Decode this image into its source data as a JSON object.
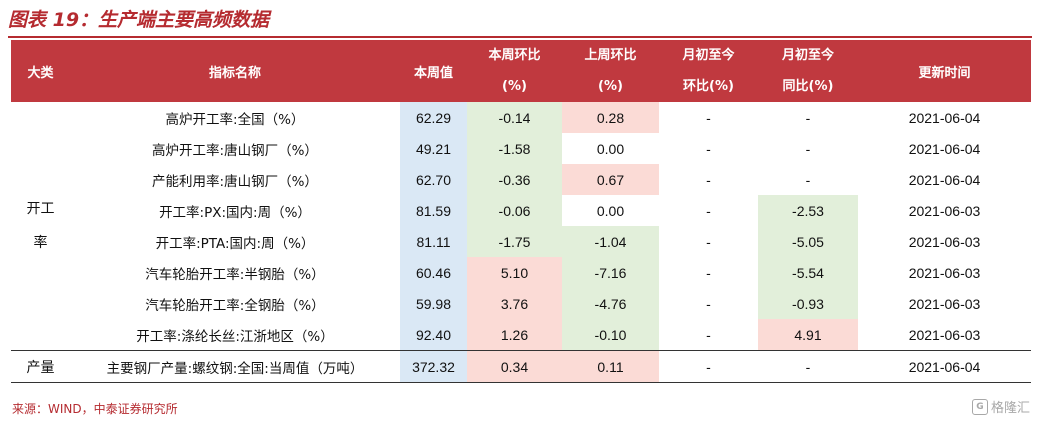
{
  "title": "图表 19：生产端主要高频数据",
  "header": {
    "category": "大类",
    "indicator": "指标名称",
    "this_week": "本周值",
    "wow_line1": "本周环比",
    "wow_line2": "(%)",
    "prev_wow_line1": "上周环比",
    "prev_wow_line2": "(%)",
    "mtd_mom_line1": "月初至今",
    "mtd_mom_line2": "环比(%)",
    "mtd_yoy_line1": "月初至今",
    "mtd_yoy_line2": "同比(%)",
    "updated": "更新时间"
  },
  "group1": {
    "line1": "开工",
    "line2": "率"
  },
  "group2": {
    "label": "产量"
  },
  "rows": [
    {
      "name": "高炉开工率:全国（%）",
      "value": "62.29",
      "wow": "-0.14",
      "prev_wow": "0.28",
      "mom": "-",
      "yoy": "-",
      "date": "2021-06-04"
    },
    {
      "name": "高炉开工率:唐山钢厂（%）",
      "value": "49.21",
      "wow": "-1.58",
      "prev_wow": "0.00",
      "mom": "-",
      "yoy": "-",
      "date": "2021-06-04"
    },
    {
      "name": "产能利用率:唐山钢厂（%）",
      "value": "62.70",
      "wow": "-0.36",
      "prev_wow": "0.67",
      "mom": "-",
      "yoy": "-",
      "date": "2021-06-04"
    },
    {
      "name": "开工率:PX:国内:周（%）",
      "value": "81.59",
      "wow": "-0.06",
      "prev_wow": "0.00",
      "mom": "-",
      "yoy": "-2.53",
      "date": "2021-06-03"
    },
    {
      "name": "开工率:PTA:国内:周（%）",
      "value": "81.11",
      "wow": "-1.75",
      "prev_wow": "-1.04",
      "mom": "-",
      "yoy": "-5.05",
      "date": "2021-06-03"
    },
    {
      "name": "汽车轮胎开工率:半钢胎（%）",
      "value": "60.46",
      "wow": "5.10",
      "prev_wow": "-7.16",
      "mom": "-",
      "yoy": "-5.54",
      "date": "2021-06-03"
    },
    {
      "name": "汽车轮胎开工率:全钢胎（%）",
      "value": "59.98",
      "wow": "3.76",
      "prev_wow": "-4.76",
      "mom": "-",
      "yoy": "-0.93",
      "date": "2021-06-03"
    },
    {
      "name": "开工率:涤纶长丝:江浙地区（%）",
      "value": "92.40",
      "wow": "1.26",
      "prev_wow": "-0.10",
      "mom": "-",
      "yoy": "4.91",
      "date": "2021-06-03"
    },
    {
      "name": "主要钢厂产量:螺纹钢:全国:当周值（万吨）",
      "value": "372.32",
      "wow": "0.34",
      "prev_wow": "0.11",
      "mom": "-",
      "yoy": "-",
      "date": "2021-06-04"
    }
  ],
  "source": "来源：WIND，中泰证券研究所",
  "watermark": "格隆汇",
  "colors": {
    "header_bg": "#c0393f",
    "title": "#b52b30",
    "blue": "#dae8f5",
    "green": "#e2efda",
    "pink": "#fbdbd6"
  }
}
